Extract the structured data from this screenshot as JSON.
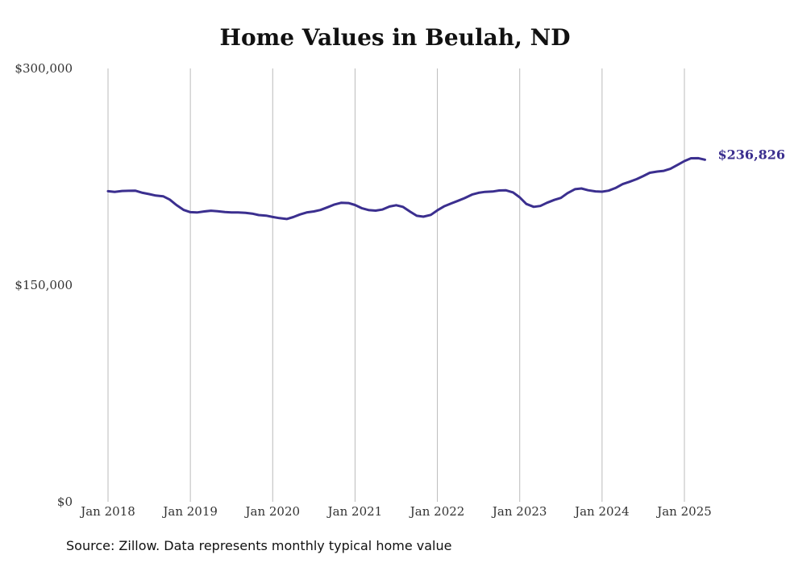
{
  "title": "Home Values in Beulah, ND",
  "source": "Source: Zillow. Data represents monthly typical home value",
  "colors": {
    "line": "#3b2f8f",
    "grid": "#bbbbbb",
    "text": "#333333"
  },
  "chart_data": {
    "type": "line",
    "title": "Home Values in Beulah, ND",
    "xlabel": "",
    "ylabel": "",
    "ylim": [
      0,
      300000
    ],
    "y_ticks": [
      {
        "value": 0,
        "label": "$0"
      },
      {
        "value": 150000,
        "label": "$150,000"
      },
      {
        "value": 300000,
        "label": "$300,000"
      }
    ],
    "x_ticks": [
      {
        "value": 2018,
        "label": "Jan 2018"
      },
      {
        "value": 2019,
        "label": "Jan 2019"
      },
      {
        "value": 2020,
        "label": "Jan 2020"
      },
      {
        "value": 2021,
        "label": "Jan 2021"
      },
      {
        "value": 2022,
        "label": "Jan 2022"
      },
      {
        "value": 2023,
        "label": "Jan 2023"
      },
      {
        "value": 2024,
        "label": "Jan 2024"
      },
      {
        "value": 2025,
        "label": "Jan 2025"
      }
    ],
    "grid": "vertical",
    "end_label": "$236,826",
    "series": [
      {
        "points": [
          [
            2018.0,
            215000
          ],
          [
            2018.08,
            214600
          ],
          [
            2018.17,
            215200
          ],
          [
            2018.25,
            215300
          ],
          [
            2018.33,
            215400
          ],
          [
            2018.42,
            213900
          ],
          [
            2018.5,
            213000
          ],
          [
            2018.58,
            212000
          ],
          [
            2018.67,
            211500
          ],
          [
            2018.75,
            209200
          ],
          [
            2018.83,
            205500
          ],
          [
            2018.92,
            202000
          ],
          [
            2019.0,
            200500
          ],
          [
            2019.08,
            200300
          ],
          [
            2019.17,
            201000
          ],
          [
            2019.25,
            201500
          ],
          [
            2019.33,
            201200
          ],
          [
            2019.42,
            200600
          ],
          [
            2019.5,
            200300
          ],
          [
            2019.58,
            200300
          ],
          [
            2019.67,
            200000
          ],
          [
            2019.75,
            199500
          ],
          [
            2019.83,
            198500
          ],
          [
            2019.92,
            198100
          ],
          [
            2020.0,
            197200
          ],
          [
            2020.08,
            196400
          ],
          [
            2020.17,
            195800
          ],
          [
            2020.25,
            197100
          ],
          [
            2020.33,
            198900
          ],
          [
            2020.42,
            200400
          ],
          [
            2020.5,
            201000
          ],
          [
            2020.58,
            202000
          ],
          [
            2020.67,
            204000
          ],
          [
            2020.75,
            205800
          ],
          [
            2020.83,
            207000
          ],
          [
            2020.92,
            206800
          ],
          [
            2021.0,
            205500
          ],
          [
            2021.08,
            203300
          ],
          [
            2021.17,
            201900
          ],
          [
            2021.25,
            201600
          ],
          [
            2021.33,
            202300
          ],
          [
            2021.42,
            204400
          ],
          [
            2021.5,
            205300
          ],
          [
            2021.58,
            204200
          ],
          [
            2021.67,
            200800
          ],
          [
            2021.75,
            198000
          ],
          [
            2021.83,
            197400
          ],
          [
            2021.92,
            198600
          ],
          [
            2022.0,
            201800
          ],
          [
            2022.08,
            204500
          ],
          [
            2022.17,
            206600
          ],
          [
            2022.25,
            208400
          ],
          [
            2022.33,
            210200
          ],
          [
            2022.42,
            212700
          ],
          [
            2022.5,
            213900
          ],
          [
            2022.58,
            214600
          ],
          [
            2022.67,
            214800
          ],
          [
            2022.75,
            215500
          ],
          [
            2022.83,
            215700
          ],
          [
            2022.92,
            214200
          ],
          [
            2023.0,
            210800
          ],
          [
            2023.08,
            206200
          ],
          [
            2023.17,
            204200
          ],
          [
            2023.25,
            204800
          ],
          [
            2023.33,
            207000
          ],
          [
            2023.42,
            209000
          ],
          [
            2023.5,
            210400
          ],
          [
            2023.58,
            213700
          ],
          [
            2023.67,
            216400
          ],
          [
            2023.75,
            216900
          ],
          [
            2023.83,
            215700
          ],
          [
            2023.92,
            214900
          ],
          [
            2024.0,
            214700
          ],
          [
            2024.08,
            215400
          ],
          [
            2024.17,
            217400
          ],
          [
            2024.25,
            219900
          ],
          [
            2024.33,
            221500
          ],
          [
            2024.42,
            223400
          ],
          [
            2024.5,
            225500
          ],
          [
            2024.58,
            227800
          ],
          [
            2024.67,
            228600
          ],
          [
            2024.75,
            229100
          ],
          [
            2024.83,
            230500
          ],
          [
            2024.92,
            233300
          ],
          [
            2025.0,
            235900
          ],
          [
            2025.08,
            237800
          ],
          [
            2025.17,
            237900
          ],
          [
            2025.25,
            236826
          ]
        ]
      }
    ]
  }
}
